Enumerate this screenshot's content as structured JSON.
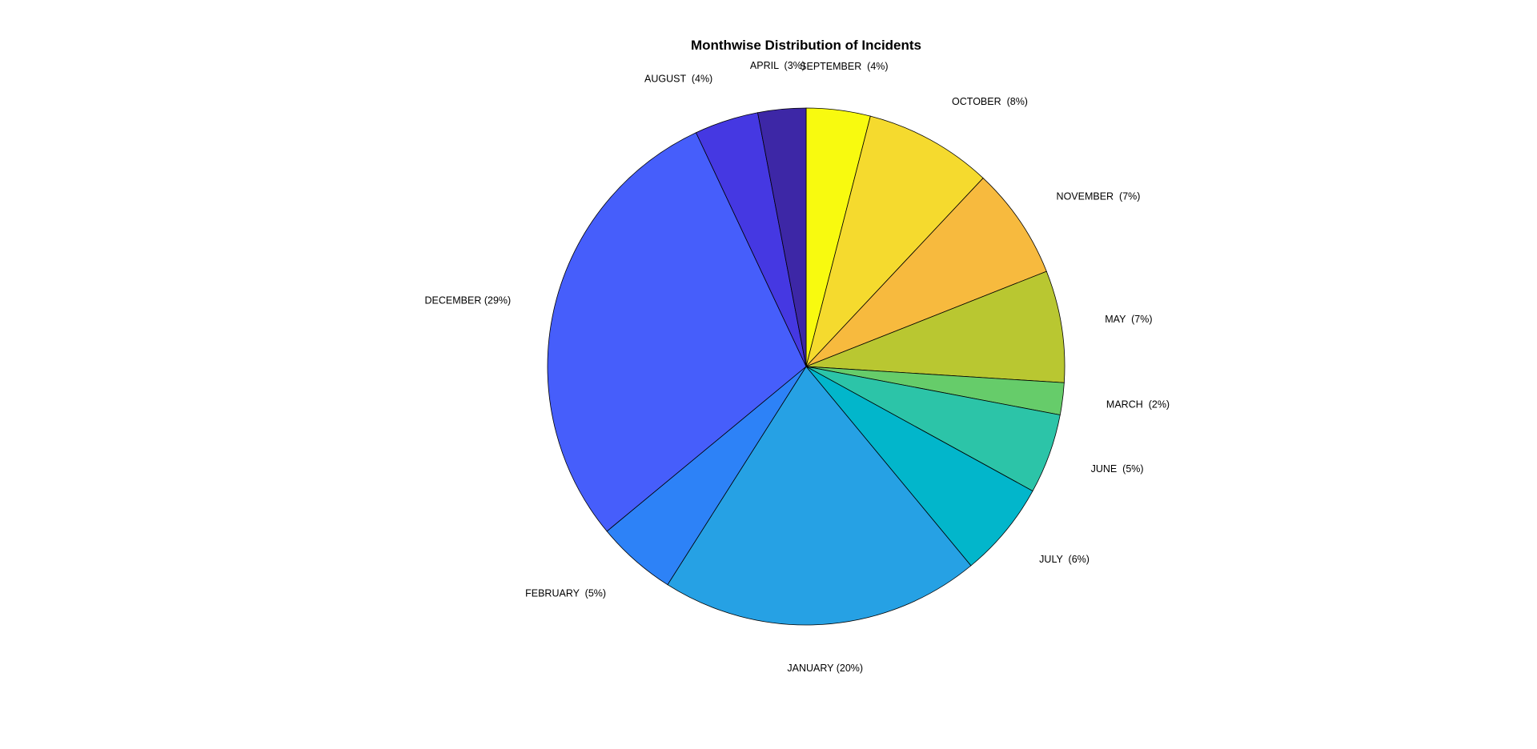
{
  "chart_data": {
    "type": "pie",
    "title": "Monthwise Distribution of Incidents",
    "start": "top",
    "direction": "clockwise",
    "slices": [
      {
        "label": "SEPTEMBER  (4%)",
        "name": "SEPTEMBER",
        "value": 4,
        "color": "#F8FA0F"
      },
      {
        "label": "OCTOBER  (8%)",
        "name": "OCTOBER",
        "value": 8,
        "color": "#F5DA2E"
      },
      {
        "label": "NOVEMBER  (7%)",
        "name": "NOVEMBER",
        "value": 7,
        "color": "#F7BA3E"
      },
      {
        "label": "MAY  (7%)",
        "name": "MAY",
        "value": 7,
        "color": "#B9C731"
      },
      {
        "label": "MARCH  (2%)",
        "name": "MARCH",
        "value": 2,
        "color": "#66CC6A"
      },
      {
        "label": "JUNE  (5%)",
        "name": "JUNE",
        "value": 5,
        "color": "#2CC4A8"
      },
      {
        "label": "JULY  (6%)",
        "name": "JULY",
        "value": 6,
        "color": "#02B6CB"
      },
      {
        "label": "JANUARY (20%)",
        "name": "JANUARY",
        "value": 20,
        "color": "#26A1E4"
      },
      {
        "label": "FEBRUARY  (5%)",
        "name": "FEBRUARY",
        "value": 5,
        "color": "#2D82F7"
      },
      {
        "label": "DECEMBER (29%)",
        "name": "DECEMBER",
        "value": 29,
        "color": "#465EFB"
      },
      {
        "label": "AUGUST  (4%)",
        "name": "AUGUST",
        "value": 4,
        "color": "#4538E2"
      },
      {
        "label": "APRIL  (3%)",
        "name": "APRIL",
        "value": 3,
        "color": "#3D27A6"
      }
    ]
  }
}
